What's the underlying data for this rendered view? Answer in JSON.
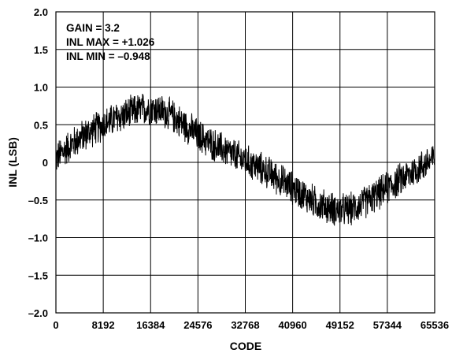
{
  "chart_data": {
    "type": "line",
    "title": "",
    "xlabel": "CODE",
    "ylabel": "INL (LSB)",
    "xlim": [
      0,
      65536
    ],
    "ylim": [
      -2.0,
      2.0
    ],
    "grid": true,
    "x_ticks": [
      0,
      8192,
      16384,
      24576,
      32768,
      40960,
      49152,
      57344,
      65536
    ],
    "x_tick_labels": [
      "0",
      "8192",
      "16384",
      "24576",
      "32768",
      "40960",
      "49152",
      "57344",
      "65536"
    ],
    "y_ticks": [
      2.0,
      1.5,
      1.0,
      0.5,
      0,
      -0.5,
      -1.0,
      -1.5,
      -2.0
    ],
    "y_tick_labels": [
      "2.0",
      "1.5",
      "1.0",
      "0.5",
      "0",
      "–0.5",
      "–1.0",
      "–1.5",
      "–2.0"
    ],
    "annotations": [
      "GAIN =  3.2",
      "INL MAX = +1.026",
      "INL MIN = –0.948"
    ],
    "series": [
      {
        "x": [
          0,
          2048,
          4096,
          6144,
          8192,
          10240,
          12288,
          14336,
          16384,
          18432,
          20480,
          22528,
          24576,
          26624,
          28672,
          30720,
          32768,
          34816,
          36864,
          38912,
          40960,
          43008,
          45056,
          47104,
          49152,
          51200,
          53248,
          55296,
          57344,
          59392,
          61440,
          63488,
          65536
        ],
        "y": [
          0.05,
          0.2,
          0.32,
          0.42,
          0.5,
          0.58,
          0.64,
          0.7,
          0.72,
          0.68,
          0.6,
          0.48,
          0.36,
          0.26,
          0.18,
          0.1,
          0.02,
          -0.06,
          -0.14,
          -0.24,
          -0.34,
          -0.44,
          -0.54,
          -0.6,
          -0.64,
          -0.62,
          -0.54,
          -0.44,
          -0.34,
          -0.24,
          -0.14,
          -0.04,
          0.06
        ],
        "noise_band": 0.25
      }
    ]
  }
}
